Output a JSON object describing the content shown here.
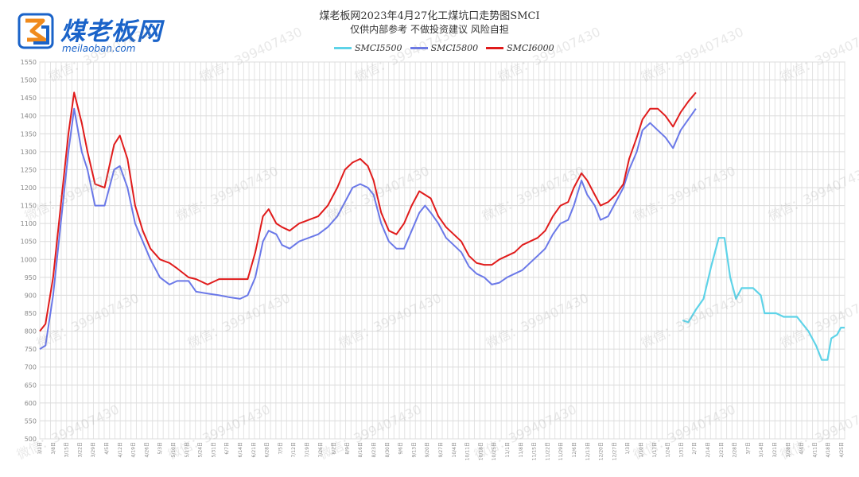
{
  "logo": {
    "name": "煤老板网",
    "url": "meilaoban.com"
  },
  "watermark": "微信：399407430",
  "colors": {
    "SMCI5500": "#5ed3e8",
    "SMCI5800": "#6a78e8",
    "SMCI6000": "#e01b1b",
    "grid": "#dddddd"
  },
  "chart_data": {
    "type": "line",
    "title": "煤老板网2023年4月27化工煤坑口走势图SMCI",
    "subtitle": "仅供内部参考 不做投资建议 风险自担",
    "ylim": [
      500,
      1550
    ],
    "yticks": [
      500,
      550,
      600,
      650,
      700,
      750,
      800,
      850,
      900,
      950,
      1000,
      1050,
      1100,
      1150,
      1200,
      1250,
      1300,
      1350,
      1400,
      1450,
      1500,
      1550
    ],
    "x_range": [
      "2022-03-01",
      "2023-04-27"
    ],
    "x_ticks": [
      "3/1日",
      "3/8日",
      "3/15日",
      "3/22日",
      "3/29日",
      "4/5日",
      "4/12日",
      "4/19日",
      "4/26日",
      "5/3日",
      "5/10日",
      "5/17日",
      "5/24日",
      "5/31日",
      "6/7日",
      "6/14日",
      "6/21日",
      "6/28日",
      "7/5日",
      "7/12日",
      "7/19日",
      "7/26日",
      "8/2日",
      "8/9日",
      "8/16日",
      "8/23日",
      "8/30日",
      "9/6日",
      "9/13日",
      "9/20日",
      "9/27日",
      "10/4日",
      "10/11日",
      "10/18日",
      "10/25日",
      "11/1日",
      "11/8日",
      "11/15日",
      "11/22日",
      "11/29日",
      "12/6日",
      "12/13日",
      "12/20日",
      "12/27日",
      "1/3日",
      "1/10日",
      "1/17日",
      "1/24日",
      "1/31日",
      "2/7日",
      "2/14日",
      "2/21日",
      "2/28日",
      "3/7日",
      "3/14日",
      "3/21日",
      "3/28日",
      "4/4日",
      "4/11日",
      "4/18日",
      "4/25日"
    ],
    "series": [
      {
        "name": "SMCI5500",
        "points": [
          [
            "2023-02-01",
            830
          ],
          [
            "2023-02-04",
            825
          ],
          [
            "2023-02-08",
            860
          ],
          [
            "2023-02-12",
            890
          ],
          [
            "2023-02-16",
            980
          ],
          [
            "2023-02-20",
            1060
          ],
          [
            "2023-02-23",
            1060
          ],
          [
            "2023-02-26",
            950
          ],
          [
            "2023-03-01",
            890
          ],
          [
            "2023-03-04",
            920
          ],
          [
            "2023-03-10",
            920
          ],
          [
            "2023-03-14",
            900
          ],
          [
            "2023-03-16",
            850
          ],
          [
            "2023-03-22",
            850
          ],
          [
            "2023-03-26",
            840
          ],
          [
            "2023-04-02",
            840
          ],
          [
            "2023-04-08",
            800
          ],
          [
            "2023-04-12",
            760
          ],
          [
            "2023-04-15",
            720
          ],
          [
            "2023-04-18",
            720
          ],
          [
            "2023-04-20",
            780
          ],
          [
            "2023-04-23",
            790
          ],
          [
            "2023-04-25",
            810
          ],
          [
            "2023-04-27",
            810
          ]
        ]
      },
      {
        "name": "SMCI5800",
        "points": [
          [
            "2022-03-01",
            750
          ],
          [
            "2022-03-04",
            760
          ],
          [
            "2022-03-08",
            900
          ],
          [
            "2022-03-12",
            1100
          ],
          [
            "2022-03-16",
            1300
          ],
          [
            "2022-03-19",
            1420
          ],
          [
            "2022-03-23",
            1300
          ],
          [
            "2022-03-26",
            1250
          ],
          [
            "2022-03-30",
            1150
          ],
          [
            "2022-04-04",
            1150
          ],
          [
            "2022-04-09",
            1250
          ],
          [
            "2022-04-12",
            1260
          ],
          [
            "2022-04-16",
            1200
          ],
          [
            "2022-04-20",
            1100
          ],
          [
            "2022-04-24",
            1050
          ],
          [
            "2022-04-28",
            1000
          ],
          [
            "2022-05-03",
            950
          ],
          [
            "2022-05-08",
            930
          ],
          [
            "2022-05-12",
            940
          ],
          [
            "2022-05-18",
            940
          ],
          [
            "2022-05-22",
            910
          ],
          [
            "2022-05-28",
            905
          ],
          [
            "2022-06-03",
            900
          ],
          [
            "2022-06-08",
            895
          ],
          [
            "2022-06-14",
            890
          ],
          [
            "2022-06-18",
            900
          ],
          [
            "2022-06-22",
            950
          ],
          [
            "2022-06-26",
            1050
          ],
          [
            "2022-06-29",
            1080
          ],
          [
            "2022-07-03",
            1070
          ],
          [
            "2022-07-06",
            1040
          ],
          [
            "2022-07-10",
            1030
          ],
          [
            "2022-07-15",
            1050
          ],
          [
            "2022-07-20",
            1060
          ],
          [
            "2022-07-25",
            1070
          ],
          [
            "2022-07-30",
            1090
          ],
          [
            "2022-08-04",
            1120
          ],
          [
            "2022-08-08",
            1160
          ],
          [
            "2022-08-12",
            1200
          ],
          [
            "2022-08-16",
            1210
          ],
          [
            "2022-08-20",
            1200
          ],
          [
            "2022-08-23",
            1180
          ],
          [
            "2022-08-27",
            1100
          ],
          [
            "2022-08-31",
            1050
          ],
          [
            "2022-09-04",
            1030
          ],
          [
            "2022-09-08",
            1030
          ],
          [
            "2022-09-12",
            1080
          ],
          [
            "2022-09-16",
            1130
          ],
          [
            "2022-09-19",
            1150
          ],
          [
            "2022-09-22",
            1130
          ],
          [
            "2022-09-26",
            1100
          ],
          [
            "2022-09-30",
            1060
          ],
          [
            "2022-10-04",
            1040
          ],
          [
            "2022-10-08",
            1020
          ],
          [
            "2022-10-12",
            980
          ],
          [
            "2022-10-16",
            960
          ],
          [
            "2022-10-20",
            950
          ],
          [
            "2022-10-24",
            930
          ],
          [
            "2022-10-28",
            935
          ],
          [
            "2022-11-01",
            950
          ],
          [
            "2022-11-05",
            960
          ],
          [
            "2022-11-09",
            970
          ],
          [
            "2022-11-13",
            990
          ],
          [
            "2022-11-17",
            1010
          ],
          [
            "2022-11-21",
            1030
          ],
          [
            "2022-11-25",
            1070
          ],
          [
            "2022-11-29",
            1100
          ],
          [
            "2022-12-03",
            1110
          ],
          [
            "2022-12-06",
            1150
          ],
          [
            "2022-12-10",
            1220
          ],
          [
            "2022-12-13",
            1180
          ],
          [
            "2022-12-17",
            1150
          ],
          [
            "2022-12-20",
            1110
          ],
          [
            "2022-12-24",
            1120
          ],
          [
            "2022-12-28",
            1160
          ],
          [
            "2023-01-01",
            1200
          ],
          [
            "2023-01-04",
            1250
          ],
          [
            "2023-01-08",
            1300
          ],
          [
            "2023-01-11",
            1360
          ],
          [
            "2023-01-15",
            1380
          ],
          [
            "2023-01-19",
            1360
          ],
          [
            "2023-01-23",
            1340
          ],
          [
            "2023-01-27",
            1310
          ],
          [
            "2023-01-31",
            1360
          ],
          [
            "2023-02-04",
            1390
          ],
          [
            "2023-02-08",
            1420
          ]
        ]
      },
      {
        "name": "SMCI6000",
        "points": [
          [
            "2022-03-01",
            800
          ],
          [
            "2022-03-04",
            820
          ],
          [
            "2022-03-08",
            950
          ],
          [
            "2022-03-12",
            1150
          ],
          [
            "2022-03-16",
            1350
          ],
          [
            "2022-03-19",
            1465
          ],
          [
            "2022-03-23",
            1380
          ],
          [
            "2022-03-26",
            1300
          ],
          [
            "2022-03-30",
            1210
          ],
          [
            "2022-04-04",
            1200
          ],
          [
            "2022-04-09",
            1320
          ],
          [
            "2022-04-12",
            1345
          ],
          [
            "2022-04-16",
            1280
          ],
          [
            "2022-04-20",
            1150
          ],
          [
            "2022-04-24",
            1080
          ],
          [
            "2022-04-28",
            1030
          ],
          [
            "2022-05-03",
            1000
          ],
          [
            "2022-05-08",
            990
          ],
          [
            "2022-05-12",
            975
          ],
          [
            "2022-05-18",
            950
          ],
          [
            "2022-05-22",
            945
          ],
          [
            "2022-05-28",
            930
          ],
          [
            "2022-06-03",
            945
          ],
          [
            "2022-06-08",
            945
          ],
          [
            "2022-06-14",
            945
          ],
          [
            "2022-06-18",
            945
          ],
          [
            "2022-06-22",
            1020
          ],
          [
            "2022-06-26",
            1120
          ],
          [
            "2022-06-29",
            1140
          ],
          [
            "2022-07-03",
            1100
          ],
          [
            "2022-07-06",
            1090
          ],
          [
            "2022-07-10",
            1080
          ],
          [
            "2022-07-15",
            1100
          ],
          [
            "2022-07-20",
            1110
          ],
          [
            "2022-07-25",
            1120
          ],
          [
            "2022-07-30",
            1150
          ],
          [
            "2022-08-04",
            1200
          ],
          [
            "2022-08-08",
            1250
          ],
          [
            "2022-08-12",
            1270
          ],
          [
            "2022-08-16",
            1280
          ],
          [
            "2022-08-20",
            1260
          ],
          [
            "2022-08-23",
            1220
          ],
          [
            "2022-08-27",
            1130
          ],
          [
            "2022-08-31",
            1080
          ],
          [
            "2022-09-04",
            1070
          ],
          [
            "2022-09-08",
            1100
          ],
          [
            "2022-09-12",
            1150
          ],
          [
            "2022-09-16",
            1190
          ],
          [
            "2022-09-19",
            1180
          ],
          [
            "2022-09-22",
            1170
          ],
          [
            "2022-09-26",
            1120
          ],
          [
            "2022-09-30",
            1090
          ],
          [
            "2022-10-04",
            1070
          ],
          [
            "2022-10-08",
            1050
          ],
          [
            "2022-10-12",
            1010
          ],
          [
            "2022-10-16",
            990
          ],
          [
            "2022-10-20",
            985
          ],
          [
            "2022-10-24",
            985
          ],
          [
            "2022-10-28",
            1000
          ],
          [
            "2022-11-01",
            1010
          ],
          [
            "2022-11-05",
            1020
          ],
          [
            "2022-11-09",
            1040
          ],
          [
            "2022-11-13",
            1050
          ],
          [
            "2022-11-17",
            1060
          ],
          [
            "2022-11-21",
            1080
          ],
          [
            "2022-11-25",
            1120
          ],
          [
            "2022-11-29",
            1150
          ],
          [
            "2022-12-03",
            1160
          ],
          [
            "2022-12-06",
            1200
          ],
          [
            "2022-12-10",
            1240
          ],
          [
            "2022-12-13",
            1220
          ],
          [
            "2022-12-17",
            1180
          ],
          [
            "2022-12-20",
            1150
          ],
          [
            "2022-12-24",
            1160
          ],
          [
            "2022-12-28",
            1180
          ],
          [
            "2023-01-01",
            1210
          ],
          [
            "2023-01-04",
            1280
          ],
          [
            "2023-01-08",
            1340
          ],
          [
            "2023-01-11",
            1390
          ],
          [
            "2023-01-15",
            1420
          ],
          [
            "2023-01-19",
            1420
          ],
          [
            "2023-01-23",
            1400
          ],
          [
            "2023-01-27",
            1370
          ],
          [
            "2023-01-31",
            1410
          ],
          [
            "2023-02-04",
            1440
          ],
          [
            "2023-02-08",
            1465
          ]
        ]
      }
    ]
  }
}
